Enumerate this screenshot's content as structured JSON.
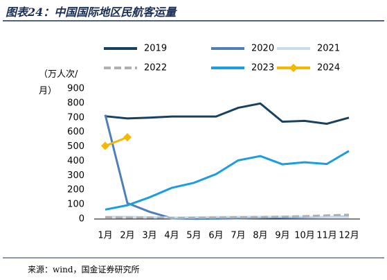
{
  "chart_data": {
    "type": "line",
    "title": "图表24：中国国际地区民航客运量",
    "y_label": "（万人次/月）",
    "source": "来源：wind，国金证券研究所",
    "categories": [
      "1月",
      "2月",
      "3月",
      "4月",
      "5月",
      "6月",
      "7月",
      "8月",
      "9月",
      "10月",
      "11月",
      "12月"
    ],
    "ylim": [
      0,
      900
    ],
    "yticks": [
      0,
      100,
      200,
      300,
      400,
      500,
      600,
      700,
      800,
      900
    ],
    "series": [
      {
        "name": "2019",
        "color": "#17415f",
        "values": [
          710,
          695,
          700,
          708,
          708,
          708,
          768,
          798,
          672,
          678,
          658,
          700
        ]
      },
      {
        "name": "2020",
        "color": "#4f7fb8",
        "values": [
          720,
          110,
          50,
          5,
          2,
          3,
          5,
          8,
          10,
          12,
          14,
          16
        ]
      },
      {
        "name": "2021",
        "color": "#c9dcef",
        "values": [
          15,
          15,
          12,
          10,
          12,
          14,
          15,
          15,
          16,
          15,
          14,
          13
        ]
      },
      {
        "name": "2022",
        "color": "#b0b0b0",
        "dash": true,
        "values": [
          12,
          10,
          10,
          8,
          8,
          10,
          12,
          14,
          16,
          20,
          25,
          30
        ]
      },
      {
        "name": "2023",
        "color": "#1a9ee0",
        "values": [
          65,
          95,
          150,
          215,
          250,
          310,
          405,
          435,
          378,
          392,
          380,
          470
        ]
      },
      {
        "name": "2024",
        "color": "#f5b800",
        "marker": "diamond",
        "values": [
          505,
          565,
          null,
          null,
          null,
          null,
          null,
          null,
          null,
          null,
          null,
          null
        ]
      }
    ]
  }
}
